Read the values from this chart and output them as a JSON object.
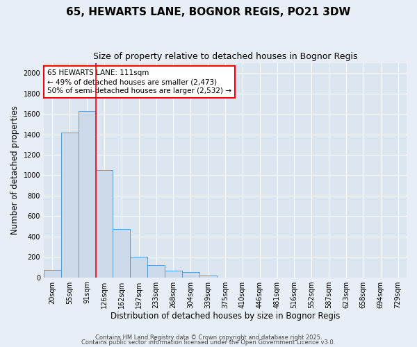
{
  "title1": "65, HEWARTS LANE, BOGNOR REGIS, PO21 3DW",
  "title2": "Size of property relative to detached houses in Bognor Regis",
  "xlabel": "Distribution of detached houses by size in Bognor Regis",
  "ylabel": "Number of detached properties",
  "bar_labels": [
    "20sqm",
    "55sqm",
    "91sqm",
    "126sqm",
    "162sqm",
    "197sqm",
    "233sqm",
    "268sqm",
    "304sqm",
    "339sqm",
    "375sqm",
    "410sqm",
    "446sqm",
    "481sqm",
    "516sqm",
    "552sqm",
    "587sqm",
    "623sqm",
    "658sqm",
    "694sqm",
    "729sqm"
  ],
  "bar_values": [
    75,
    1420,
    1630,
    1050,
    470,
    200,
    120,
    65,
    50,
    20,
    0,
    0,
    0,
    0,
    0,
    0,
    0,
    0,
    0,
    0,
    0
  ],
  "bar_color": "#ccdaea",
  "bar_edge_color": "#5b9bd5",
  "red_line_x": 2.5,
  "ylim": [
    0,
    2100
  ],
  "yticks": [
    0,
    200,
    400,
    600,
    800,
    1000,
    1200,
    1400,
    1600,
    1800,
    2000
  ],
  "annotation_line1": "65 HEWARTS LANE: 111sqm",
  "annotation_line2": "← 49% of detached houses are smaller (2,473)",
  "annotation_line3": "50% of semi-detached houses are larger (2,532) →",
  "bg_color": "#e8eef5",
  "plot_bg_color": "#dce6f0",
  "grid_color": "#ffffff",
  "footer1": "Contains HM Land Registry data © Crown copyright and database right 2025.",
  "footer2": "Contains public sector information licensed under the Open Government Licence v3.0.",
  "title_fontsize": 11,
  "subtitle_fontsize": 9,
  "axis_label_fontsize": 8.5,
  "tick_fontsize": 7,
  "annotation_fontsize": 7.5
}
